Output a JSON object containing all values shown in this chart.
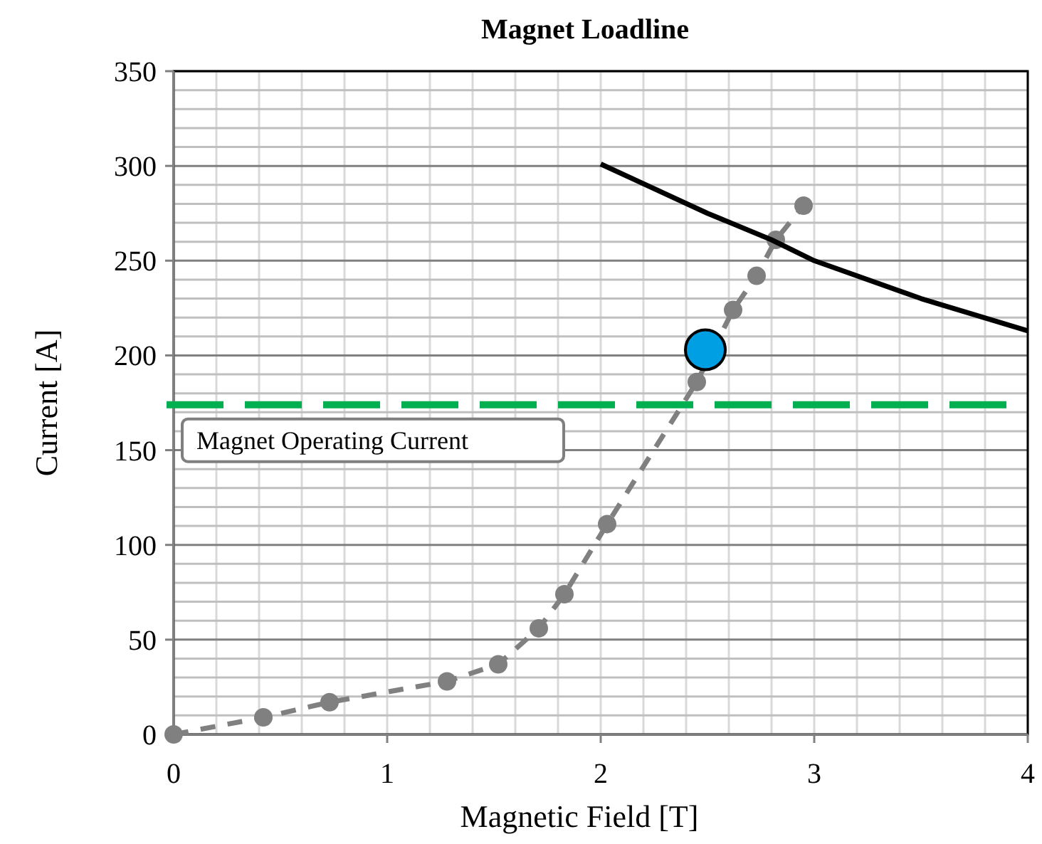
{
  "chart_data": {
    "type": "line",
    "title": "Magnet Loadline",
    "xlabel": "Magnetic Field [T]",
    "ylabel": "Current [A]",
    "xlim": [
      0,
      4
    ],
    "xticks": [
      0,
      1,
      2,
      3,
      4
    ],
    "ylim": [
      0,
      350
    ],
    "yticks": [
      0,
      50,
      100,
      150,
      200,
      250,
      300,
      350
    ],
    "grid": true,
    "series": [
      {
        "color": "#808080",
        "marker": "circle",
        "line_style": "dashed",
        "x": [
          0,
          0.42,
          0.73,
          1.28,
          1.52,
          1.71,
          1.83,
          2.03,
          2.45,
          2.62,
          2.73,
          2.82,
          2.95
        ],
        "values": [
          0,
          9,
          17,
          28,
          37,
          56,
          74,
          111,
          186,
          224,
          242,
          261,
          279
        ]
      },
      {
        "color": "#000000",
        "marker": "none",
        "line_style": "solid",
        "x": [
          2,
          2.5,
          2.8,
          3,
          3.5,
          4
        ],
        "values": [
          301,
          275,
          261,
          250,
          230,
          213
        ]
      },
      {
        "type": "scatter",
        "color": "#009fe3",
        "marker": "circle",
        "x": [
          2.49
        ],
        "values": [
          203
        ]
      }
    ],
    "ref_lines": [
      {
        "axis": "y",
        "value": 174,
        "label": "Magnet Operating Current",
        "color": "#00b050",
        "line_style": "dashed"
      }
    ]
  }
}
